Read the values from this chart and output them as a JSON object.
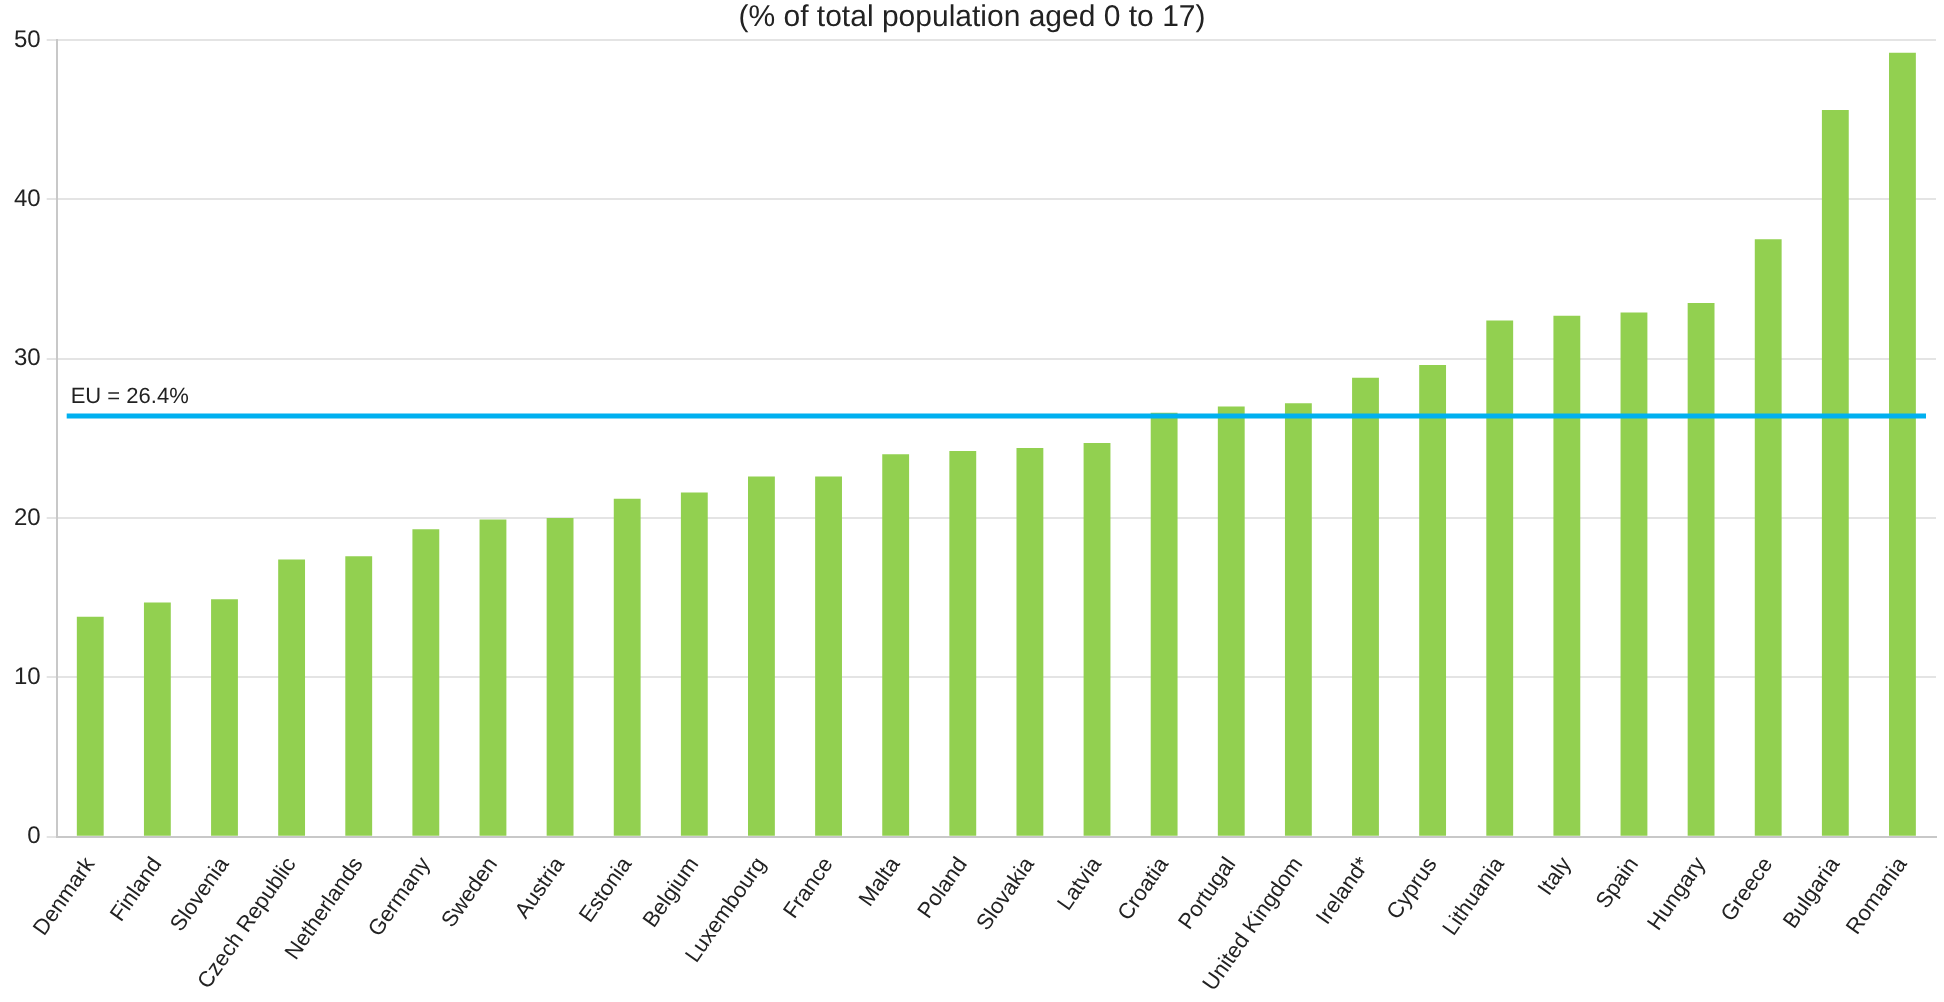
{
  "chart_data": {
    "type": "bar",
    "title": "(% of total population aged 0 to 17)",
    "categories": [
      "Denmark",
      "Finland",
      "Slovenia",
      "Czech Republic",
      "Netherlands",
      "Germany",
      "Sweden",
      "Austria",
      "Estonia",
      "Belgium",
      "Luxembourg",
      "France",
      "Malta",
      "Poland",
      "Slovakia",
      "Latvia",
      "Croatia",
      "Portugal",
      "United Kingdom",
      "Ireland*",
      "Cyprus",
      "Lithuania",
      "Italy",
      "Spain",
      "Hungary",
      "Greece",
      "Bulgaria",
      "Romania"
    ],
    "values": [
      13.8,
      14.7,
      14.9,
      17.4,
      17.6,
      19.3,
      19.9,
      20.0,
      21.2,
      21.6,
      22.6,
      22.6,
      24.0,
      24.2,
      24.4,
      24.7,
      26.6,
      27.0,
      27.2,
      28.8,
      29.6,
      32.4,
      32.7,
      32.9,
      33.5,
      37.5,
      45.6,
      49.2
    ],
    "color": "#92d050",
    "ylim": [
      0,
      50
    ],
    "yticks": [
      0,
      10,
      20,
      30,
      40,
      50
    ],
    "grid": "y",
    "ref_lines": [
      {
        "axis": "y",
        "value": 26.4,
        "label": "EU = 26.4%",
        "color": "#00b0f0"
      }
    ]
  }
}
